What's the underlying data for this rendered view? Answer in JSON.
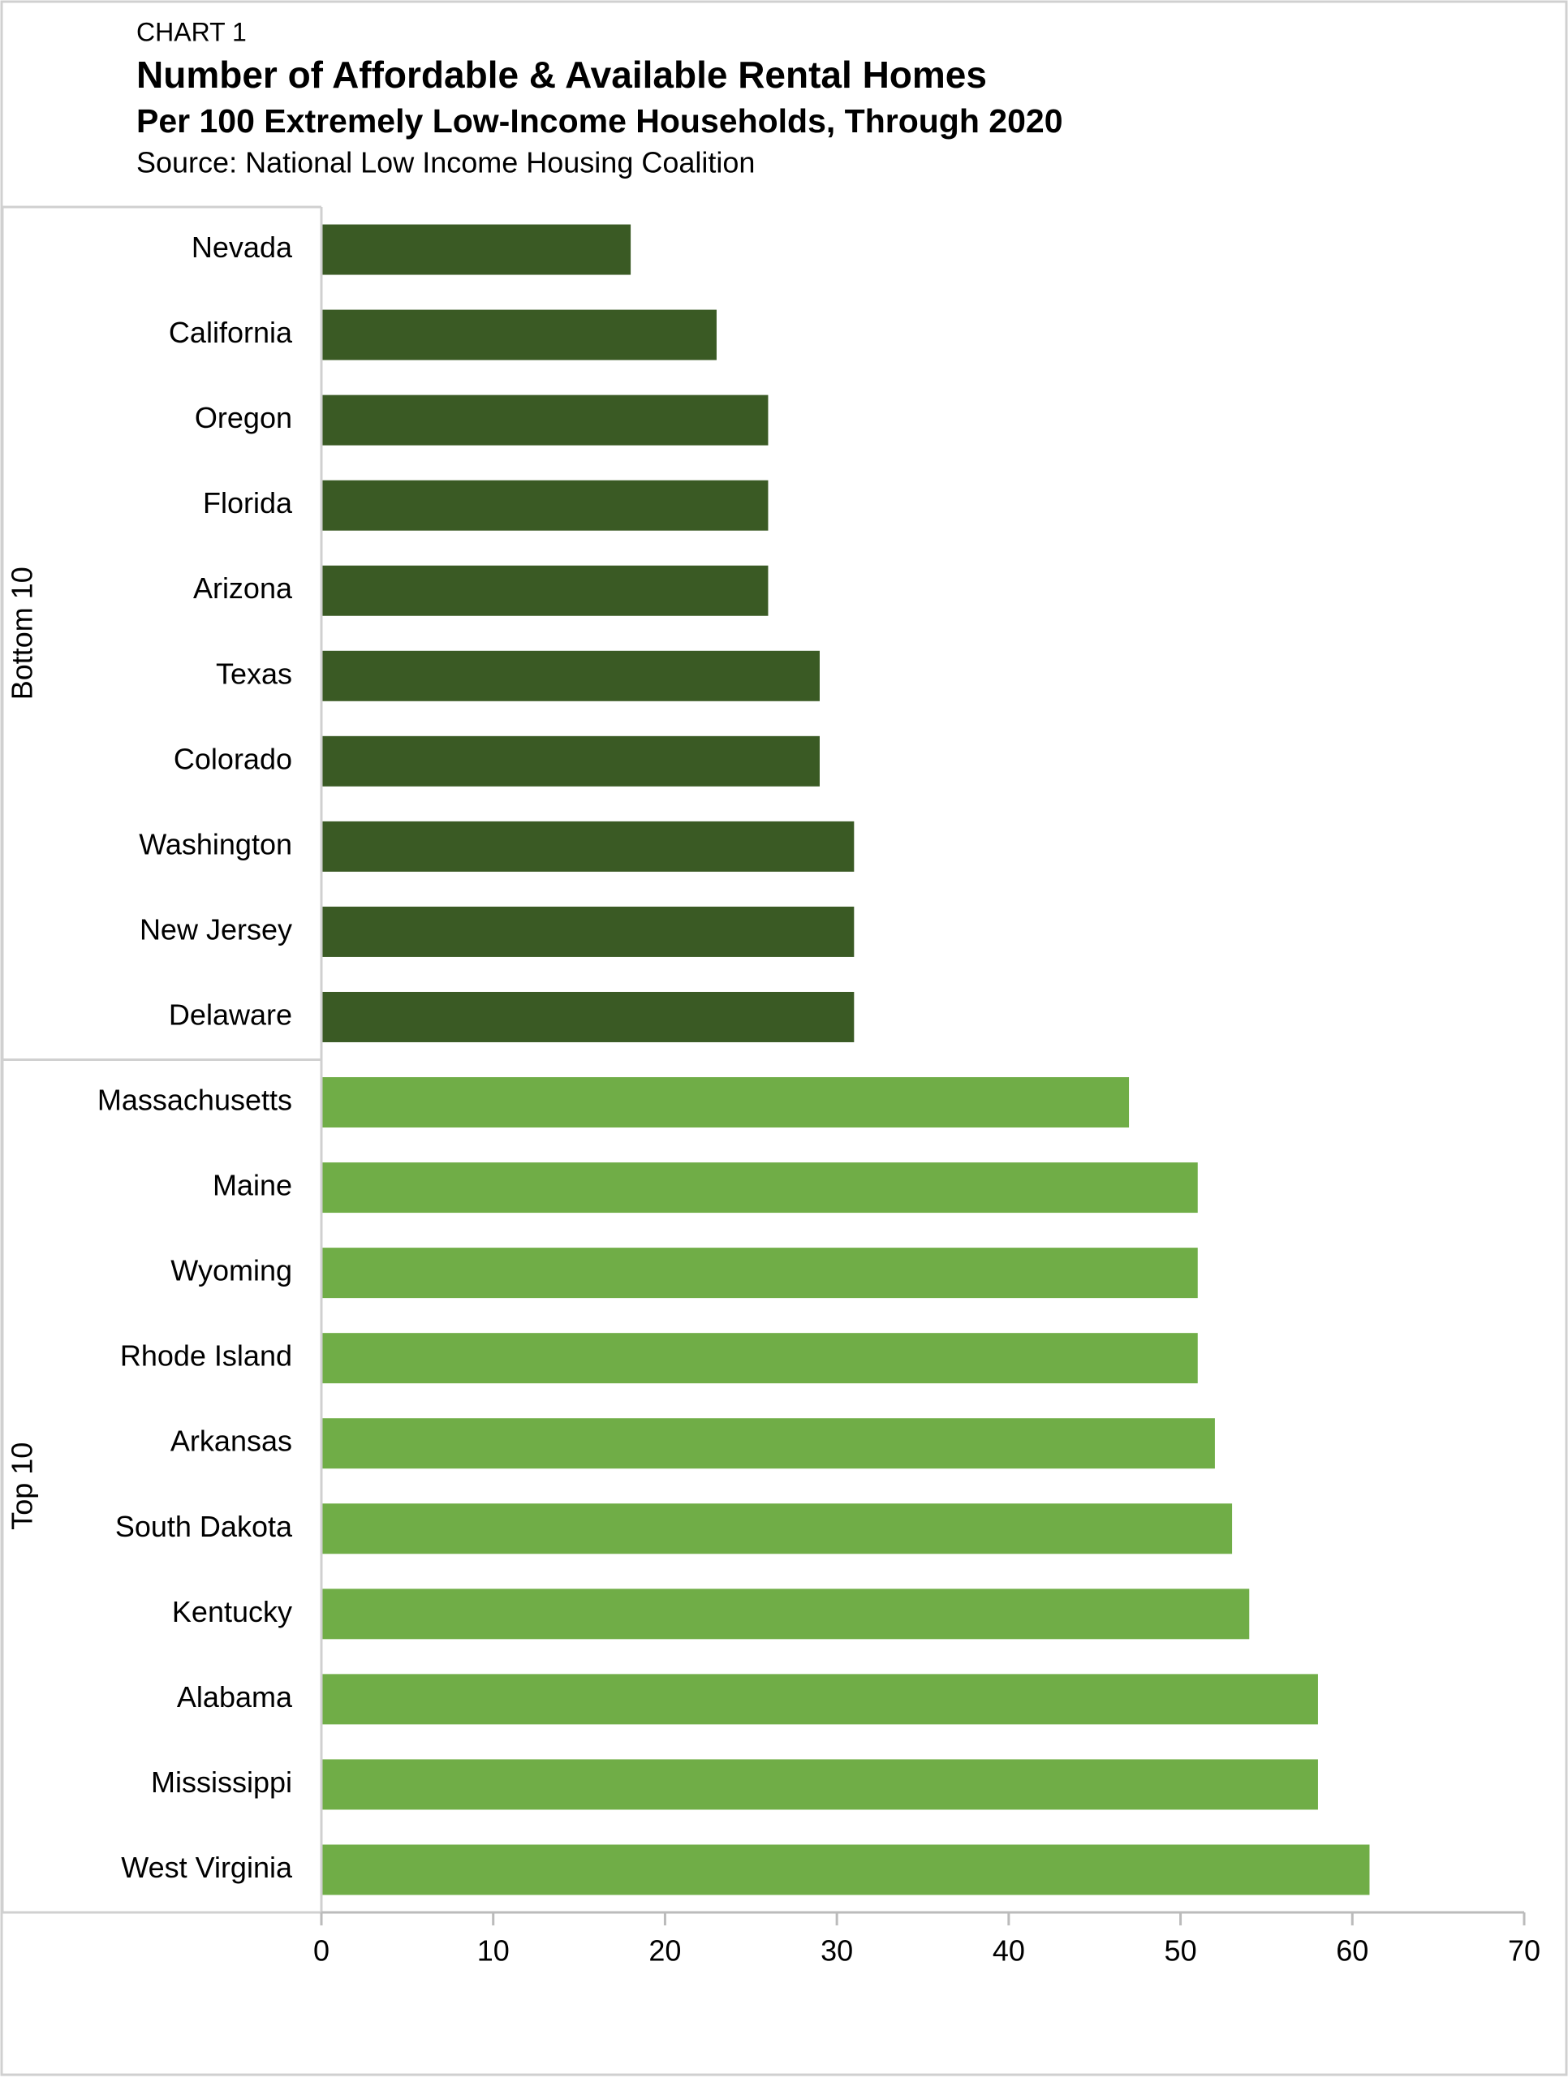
{
  "chart_data": {
    "type": "bar",
    "orientation": "horizontal",
    "label": "CHART 1",
    "title": "Number of Affordable & Available Rental Homes",
    "subtitle": "Per 100 Extremely Low-Income Households, Through 2020",
    "source": "Source: National Low Income Housing Coalition",
    "series": [
      {
        "name": "Bottom 10",
        "color": "#3a5a24",
        "categories": [
          "Nevada",
          "California",
          "Oregon",
          "Florida",
          "Arizona",
          "Texas",
          "Colorado",
          "Washington",
          "New Jersey",
          "Delaware"
        ],
        "values": [
          18,
          23,
          26,
          26,
          26,
          29,
          29,
          31,
          31,
          31
        ]
      },
      {
        "name": "Top 10",
        "color": "#70ad47",
        "categories": [
          "Massachusetts",
          "Maine",
          "Wyoming",
          "Rhode Island",
          "Arkansas",
          "South Dakota",
          "Kentucky",
          "Alabama",
          "Mississippi",
          "West Virginia"
        ],
        "values": [
          47,
          51,
          51,
          51,
          52,
          53,
          54,
          58,
          58,
          61
        ]
      }
    ],
    "xlim": [
      0,
      70
    ],
    "xticks": [
      0,
      10,
      20,
      30,
      40,
      50,
      60,
      70
    ]
  }
}
